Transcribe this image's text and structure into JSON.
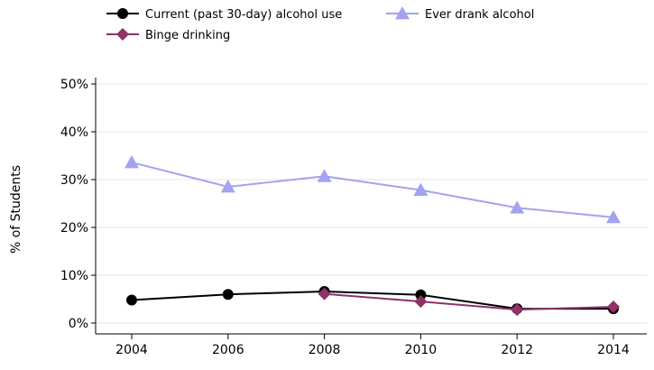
{
  "chart_data": {
    "type": "line",
    "title": "",
    "xlabel": "",
    "ylabel": "% of Students",
    "x": [
      2004,
      2006,
      2008,
      2010,
      2012,
      2014
    ],
    "x_tick_labels": [
      "2004",
      "2006",
      "2008",
      "2010",
      "2012",
      "2014"
    ],
    "ylim": [
      0,
      50
    ],
    "y_ticks": [
      0,
      10,
      20,
      30,
      40,
      50
    ],
    "y_tick_labels": [
      "0%",
      "10%",
      "20%",
      "30%",
      "40%",
      "50%"
    ],
    "grid": "horizontal",
    "legend_position": "top",
    "series": [
      {
        "name": "Current (past 30-day) alcohol use",
        "marker": "circle",
        "color": "#000000",
        "x": [
          2004,
          2006,
          2008,
          2010,
          2012,
          2014
        ],
        "values": [
          4.8,
          6.0,
          6.6,
          5.9,
          3.0,
          3.0
        ]
      },
      {
        "name": "Ever drank alcohol",
        "marker": "triangle",
        "color": "#a3a3f0",
        "x": [
          2004,
          2006,
          2008,
          2010,
          2012,
          2014
        ],
        "values": [
          33.6,
          28.5,
          30.7,
          27.8,
          24.1,
          22.1
        ]
      },
      {
        "name": "Binge drinking",
        "marker": "diamond",
        "color": "#8e3267",
        "x": [
          2008,
          2010,
          2012,
          2014
        ],
        "values": [
          6.1,
          4.5,
          2.8,
          3.4
        ]
      }
    ]
  }
}
